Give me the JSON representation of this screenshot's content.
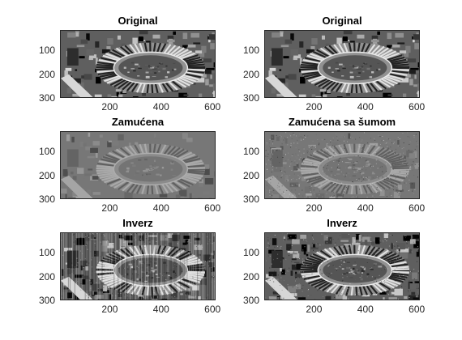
{
  "figure": {
    "background": "#ffffff",
    "subplots": [
      {
        "title": "Original",
        "style": "original",
        "seed": 11
      },
      {
        "title": "Original",
        "style": "original",
        "seed": 11
      },
      {
        "title": "Zamućena",
        "style": "blurred",
        "seed": 23
      },
      {
        "title": "Zamućena sa šumom",
        "style": "blurred-noise",
        "seed": 37
      },
      {
        "title": "Inverz",
        "style": "inverse-streaks",
        "seed": 51
      },
      {
        "title": "Inverz",
        "style": "inverse",
        "seed": 67
      }
    ],
    "yticks": [
      "100",
      "200",
      "300"
    ],
    "xticks": [
      "200",
      "400",
      "600"
    ]
  }
}
